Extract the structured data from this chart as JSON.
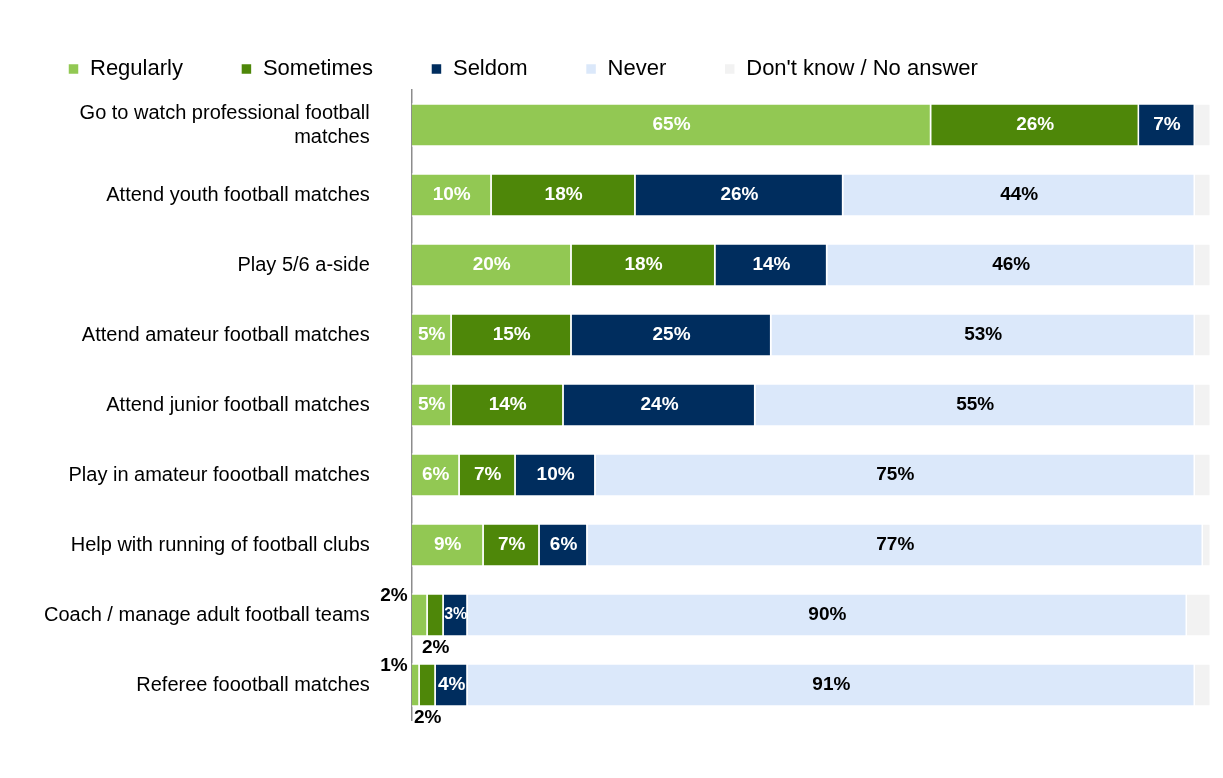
{
  "chart_data": {
    "type": "bar",
    "orientation": "horizontal",
    "stacked": true,
    "legend": "top",
    "categories": [
      "Go to watch professional football matches",
      "Attend youth football matches",
      "Play 5/6 a-side",
      "Attend amateur football matches",
      "Attend junior football matches",
      "Play in amateur foootball matches",
      "Help with running of football clubs",
      "Coach / manage adult football teams",
      "Referee foootball matches"
    ],
    "series": [
      {
        "name": "Regularly",
        "color": "#92c853",
        "values": [
          65,
          10,
          20,
          5,
          5,
          6,
          9,
          2,
          1
        ],
        "value_labels": [
          "65%",
          "10%",
          "20%",
          "5%",
          "5%",
          "6%",
          "9%",
          "2%",
          "1%"
        ]
      },
      {
        "name": "Sometimes",
        "color": "#4e8709",
        "values": [
          26,
          18,
          18,
          15,
          14,
          7,
          7,
          2,
          2
        ],
        "value_labels": [
          "26%",
          "18%",
          "18%",
          "15%",
          "14%",
          "7%",
          "7%",
          "2%",
          "2%"
        ]
      },
      {
        "name": "Seldom",
        "color": "#002d5e",
        "values": [
          7,
          26,
          14,
          25,
          24,
          10,
          6,
          3,
          4
        ],
        "value_labels": [
          "7%",
          "26%",
          "14%",
          "25%",
          "24%",
          "10%",
          "6%",
          "3%",
          "4%"
        ]
      },
      {
        "name": "Never",
        "color": "#dbe8fa",
        "values": [
          null,
          44,
          46,
          53,
          55,
          75,
          77,
          90,
          91
        ],
        "value_labels": [
          null,
          "44%",
          "46%",
          "53%",
          "55%",
          "75%",
          "77%",
          "90%",
          "91%"
        ]
      },
      {
        "name": "Don't know / No answer",
        "color": "#f2f2f2",
        "values": [
          2,
          2,
          2,
          2,
          2,
          2,
          1,
          3,
          2
        ],
        "value_labels": [
          null,
          null,
          null,
          null,
          null,
          null,
          null,
          null,
          null
        ]
      }
    ]
  }
}
